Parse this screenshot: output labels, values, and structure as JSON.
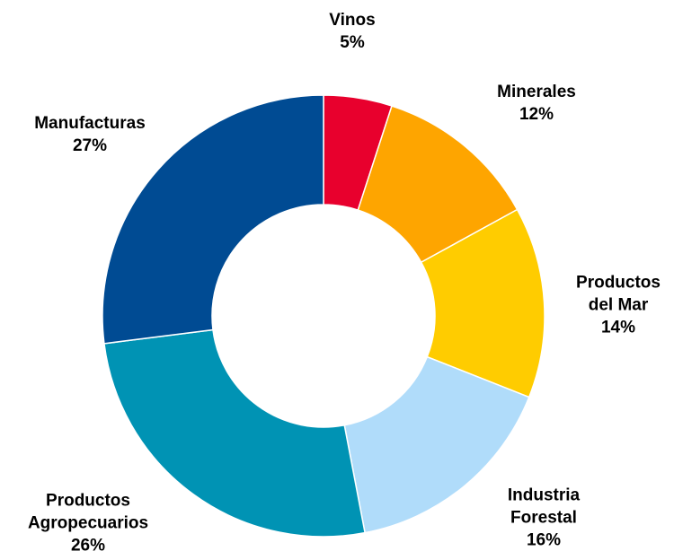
{
  "chart_data": {
    "type": "donut",
    "categories": [
      "Vinos",
      "Minerales",
      "Productos del Mar",
      "Industria Forestal",
      "Productos Agropecuarios",
      "Manufacturas"
    ],
    "values": [
      5,
      12,
      14,
      16,
      26,
      27
    ],
    "value_labels": [
      "5%",
      "12%",
      "14%",
      "16%",
      "26%",
      "27%"
    ],
    "colors": [
      "#e8002d",
      "#fea500",
      "#ffcc00",
      "#b0dcfa",
      "#0093b4",
      "#004b93"
    ]
  }
}
